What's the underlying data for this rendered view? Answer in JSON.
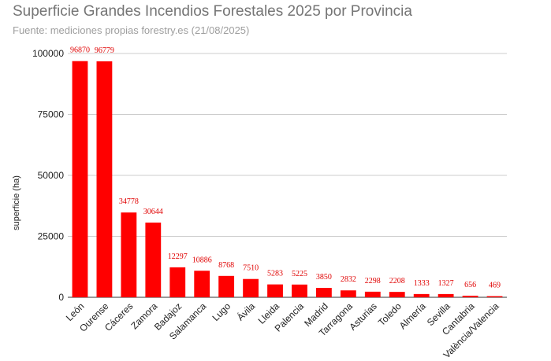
{
  "chart_data": {
    "type": "bar",
    "title": "Superficie Grandes Incendios Forestales 2025 por Provincia",
    "subtitle": "Fuente: mediciones propias forestry.es (21/08/2025)",
    "xlabel": "",
    "ylabel": "superficie (ha)",
    "ylim": [
      0,
      100000
    ],
    "yticks": [
      0,
      25000,
      50000,
      75000,
      100000
    ],
    "grid": true,
    "legend": "none",
    "bar_color": "#ff0000",
    "label_color": "#e00000",
    "categories": [
      "León",
      "Ourense",
      "Cáceres",
      "Zamora",
      "Badajoz",
      "Salamanca",
      "Lugo",
      "Ávila",
      "Lleida",
      "Palencia",
      "Madrid",
      "Tarragona",
      "Asturias",
      "Toledo",
      "Almería",
      "Sevilla",
      "Cantabria",
      "València/Valencia"
    ],
    "values": [
      96870,
      96779,
      34778,
      30644,
      12297,
      10886,
      8768,
      7510,
      5283,
      5225,
      3850,
      2832,
      2298,
      2208,
      1333,
      1327,
      656,
      469
    ]
  }
}
